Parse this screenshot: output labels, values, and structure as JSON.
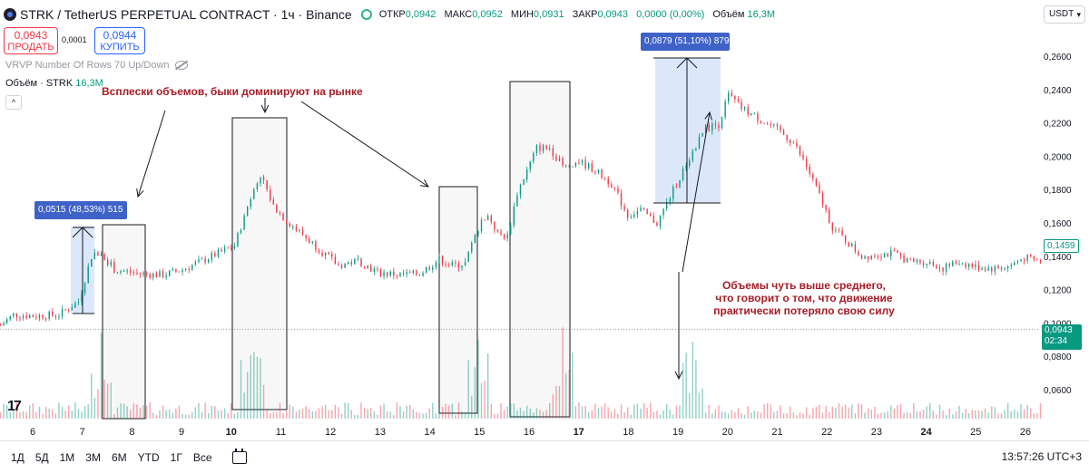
{
  "header": {
    "title": "STRK / TetherUS PERPETUAL CONTRACT · 1ч · Binance",
    "ohlc": [
      {
        "label": "ОТКР",
        "value": "0,0942"
      },
      {
        "label": "МАКС",
        "value": "0,0952"
      },
      {
        "label": "МИН",
        "value": "0,0931"
      },
      {
        "label": "ЗАКР",
        "value": "0,0943"
      }
    ],
    "change": "0,0000 (0,00%)",
    "volume_label": "Объём",
    "volume_value": "16,3M"
  },
  "trade": {
    "sell_price": "0,0943",
    "sell_label": "ПРОДАТЬ",
    "spread": "0,0001",
    "buy_price": "0,0944",
    "buy_label": "КУПИТЬ"
  },
  "indicators": {
    "vrvp": "VRVP Number Of Rows 70 Up/Down",
    "volume_title": "Объём · STRK",
    "volume_value": "16,3M"
  },
  "currency": "USDT",
  "annotations": {
    "top": "Всплески объемов, быки доминируют на рынке",
    "bottom": "Объемы чуть выше среднего, что говорит о том, что движение практически потеряло свою силу"
  },
  "measures": {
    "first": "0,0515 (48,53%) 515",
    "second": "0,0879 (51,10%) 879"
  },
  "price_tags": {
    "current": "0,0943",
    "countdown": "02:34",
    "last_close": "0,1459"
  },
  "price_axis": [
    "0,2600",
    "0,2400",
    "0,2200",
    "0,2000",
    "0,1800",
    "0,1600",
    "0,1400",
    "0,1200",
    "0,1000",
    "0,0800",
    "0,0600"
  ],
  "time_axis": [
    "6",
    "7",
    "8",
    "9",
    "10",
    "11",
    "12",
    "13",
    "14",
    "15",
    "16",
    "17",
    "18",
    "19",
    "20",
    "21",
    "22",
    "23",
    "24",
    "25",
    "26"
  ],
  "bold_ticks": [
    "10",
    "17",
    "24"
  ],
  "toolbar": {
    "timeframes": [
      "1Д",
      "5Д",
      "1М",
      "3М",
      "6М",
      "YTD",
      "1Г",
      "Все"
    ],
    "clock": "13:57:26 UTC+3"
  },
  "colors": {
    "up": "#089981",
    "down": "#f23645",
    "annotation": "#a61c26",
    "measure": "#3f62c8"
  },
  "chart_data": {
    "type": "candlestick",
    "symbol": "STRK/USDT",
    "close_anchors": [
      [
        0,
        0.098
      ],
      [
        8,
        0.106
      ],
      [
        22,
        0.105
      ],
      [
        36,
        0.106
      ],
      [
        48,
        0.116
      ],
      [
        56,
        0.15
      ],
      [
        62,
        0.153
      ],
      [
        70,
        0.14
      ],
      [
        86,
        0.137
      ],
      [
        100,
        0.136
      ],
      [
        112,
        0.14
      ],
      [
        130,
        0.15
      ],
      [
        144,
        0.158
      ],
      [
        154,
        0.195
      ],
      [
        160,
        0.212
      ],
      [
        168,
        0.188
      ],
      [
        176,
        0.177
      ],
      [
        190,
        0.162
      ],
      [
        208,
        0.143
      ],
      [
        220,
        0.147
      ],
      [
        232,
        0.138
      ],
      [
        246,
        0.136
      ],
      [
        258,
        0.137
      ],
      [
        270,
        0.148
      ],
      [
        278,
        0.143
      ],
      [
        286,
        0.145
      ],
      [
        294,
        0.172
      ],
      [
        300,
        0.182
      ],
      [
        306,
        0.167
      ],
      [
        312,
        0.165
      ],
      [
        318,
        0.198
      ],
      [
        330,
        0.232
      ],
      [
        338,
        0.232
      ],
      [
        346,
        0.218
      ],
      [
        356,
        0.222
      ],
      [
        366,
        0.215
      ],
      [
        376,
        0.205
      ],
      [
        386,
        0.181
      ],
      [
        394,
        0.185
      ],
      [
        404,
        0.175
      ],
      [
        414,
        0.2
      ],
      [
        424,
        0.225
      ],
      [
        434,
        0.247
      ],
      [
        442,
        0.25
      ],
      [
        448,
        0.272
      ],
      [
        456,
        0.262
      ],
      [
        464,
        0.256
      ],
      [
        472,
        0.25
      ],
      [
        480,
        0.244
      ],
      [
        488,
        0.236
      ],
      [
        496,
        0.218
      ],
      [
        504,
        0.196
      ],
      [
        512,
        0.172
      ],
      [
        520,
        0.162
      ],
      [
        530,
        0.15
      ],
      [
        540,
        0.152
      ],
      [
        550,
        0.152
      ],
      [
        560,
        0.146
      ],
      [
        570,
        0.146
      ],
      [
        580,
        0.141
      ],
      [
        590,
        0.146
      ],
      [
        600,
        0.142
      ],
      [
        610,
        0.141
      ],
      [
        620,
        0.142
      ],
      [
        630,
        0.149
      ],
      [
        640,
        0.146
      ]
    ],
    "volume_spike_candles": [
      62,
      154,
      156,
      294,
      346,
      426
    ]
  }
}
